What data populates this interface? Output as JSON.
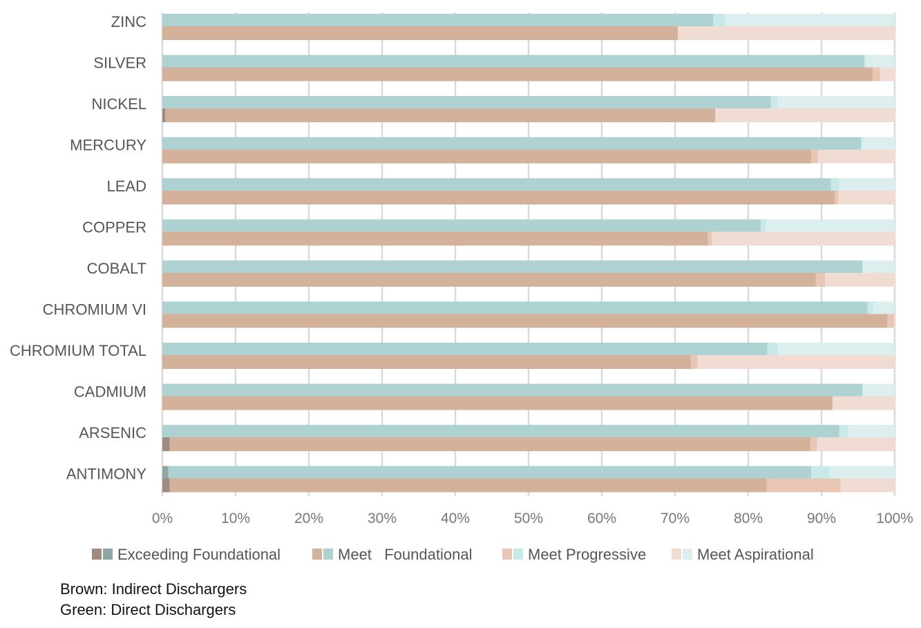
{
  "chart_data": {
    "type": "bar",
    "orientation": "horizontal",
    "stacked": true,
    "categories": [
      "ZINC",
      "SILVER",
      "NICKEL",
      "MERCURY",
      "LEAD",
      "COPPER",
      "COBALT",
      "CHROMIUM VI",
      "CHROMIUM TOTAL",
      "CADMIUM",
      "ARSENIC",
      "ANTIMONY"
    ],
    "groups": [
      {
        "name": "Direct Dischargers",
        "colors": [
          "#8FA6A6",
          "#AED1D1",
          "#C9E8E8",
          "#DDEEEE"
        ],
        "series": [
          {
            "name": "Exceeding Foundational",
            "values": [
              0,
              0,
              0,
              0,
              0,
              0,
              0,
              0,
              0,
              0,
              0,
              0.8
            ]
          },
          {
            "name": "Meet   Foundational",
            "values": [
              75.2,
              95.8,
              83.1,
              95.4,
              91.3,
              81.7,
              95.6,
              96.3,
              82.6,
              95.6,
              92.4,
              87.8
            ]
          },
          {
            "name": "Meet Progressive",
            "values": [
              1.6,
              0.3,
              0.9,
              0.2,
              1.1,
              0.7,
              0,
              0.8,
              1.4,
              0,
              1.2,
              2.6
            ]
          },
          {
            "name": "Meet Aspirational",
            "values": [
              23.2,
              3.9,
              16.0,
              4.4,
              7.6,
              17.6,
              4.4,
              2.9,
              16.0,
              4.4,
              6.4,
              8.8
            ]
          }
        ]
      },
      {
        "name": "Indirect Dischargers",
        "colors": [
          "#A08C7E",
          "#D3B19A",
          "#E8C6B3",
          "#F0DCD3"
        ],
        "series": [
          {
            "name": "Exceeding Foundational",
            "values": [
              0,
              0,
              0.4,
              0,
              0,
              0,
              0,
              0,
              0,
              0,
              1.0,
              1.0
            ]
          },
          {
            "name": "Meet   Foundational",
            "values": [
              70.4,
              97.0,
              75.1,
              88.6,
              91.8,
              74.5,
              89.2,
              99.0,
              72.2,
              91.5,
              87.5,
              81.5
            ]
          },
          {
            "name": "Meet Progressive",
            "values": [
              0,
              1.0,
              0,
              0.9,
              0.5,
              0.5,
              1.3,
              0.9,
              0.9,
              0,
              0.9,
              10.1
            ]
          },
          {
            "name": "Meet Aspirational",
            "values": [
              29.6,
              2.0,
              24.5,
              10.5,
              7.7,
              25.0,
              9.5,
              0.1,
              26.9,
              8.5,
              10.6,
              7.4
            ]
          }
        ]
      }
    ],
    "xlim": [
      0,
      100
    ],
    "x_ticks": [
      "0%",
      "10%",
      "20%",
      "30%",
      "40%",
      "50%",
      "60%",
      "70%",
      "80%",
      "90%",
      "100%"
    ],
    "grid": true,
    "legend_position": "bottom",
    "legend": [
      "Exceeding Foundational",
      "Meet   Foundational",
      "Meet Progressive",
      "Meet Aspirational"
    ],
    "gridline_color": "#D9D9D9"
  },
  "notes": {
    "line1": "Brown: Indirect Dischargers",
    "line2": "Green: Direct Dischargers"
  }
}
